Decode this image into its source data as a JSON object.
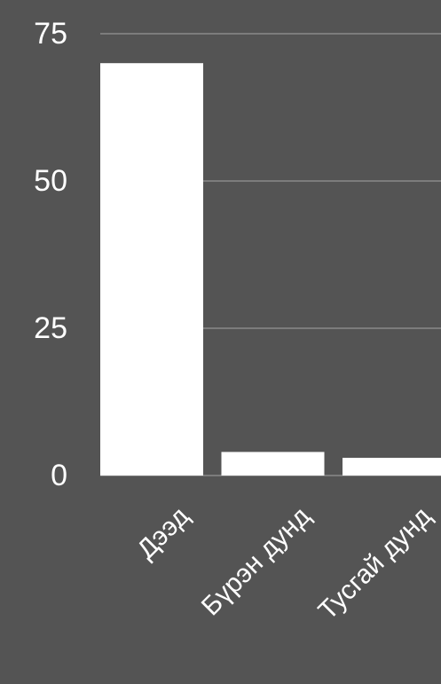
{
  "chart_data": {
    "type": "bar",
    "categories": [
      "Дээд",
      "Бүрэн дунд",
      "Тусгай дунд"
    ],
    "values": [
      70,
      4,
      3
    ],
    "color": "#ffffff",
    "ylim": [
      0,
      75
    ],
    "yticks": [
      0,
      25,
      50,
      75
    ],
    "grid": true
  }
}
